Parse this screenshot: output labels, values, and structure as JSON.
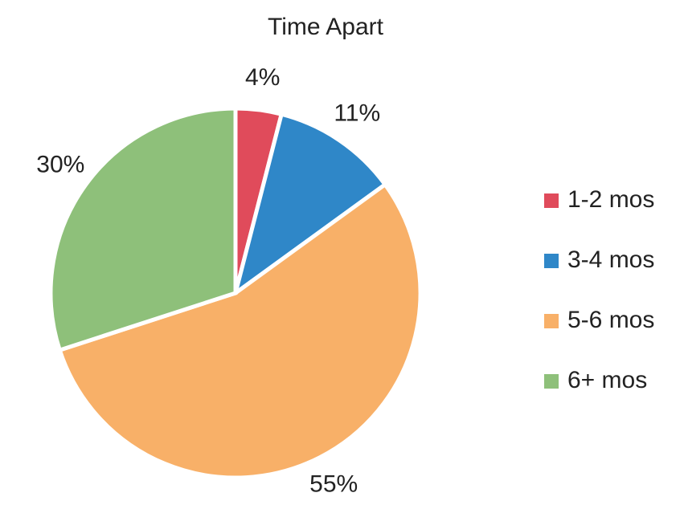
{
  "chart_data": {
    "type": "pie",
    "title": "Time Apart",
    "categories": [
      "1-2 mos",
      "3-4 mos",
      "5-6 mos",
      "6+ mos"
    ],
    "values": [
      4,
      11,
      55,
      30
    ],
    "value_labels": [
      "4%",
      "11%",
      "55%",
      "30%"
    ],
    "colors": [
      "#e04b5b",
      "#2f87c8",
      "#f8b068",
      "#8ec07a"
    ],
    "legend": "right"
  }
}
